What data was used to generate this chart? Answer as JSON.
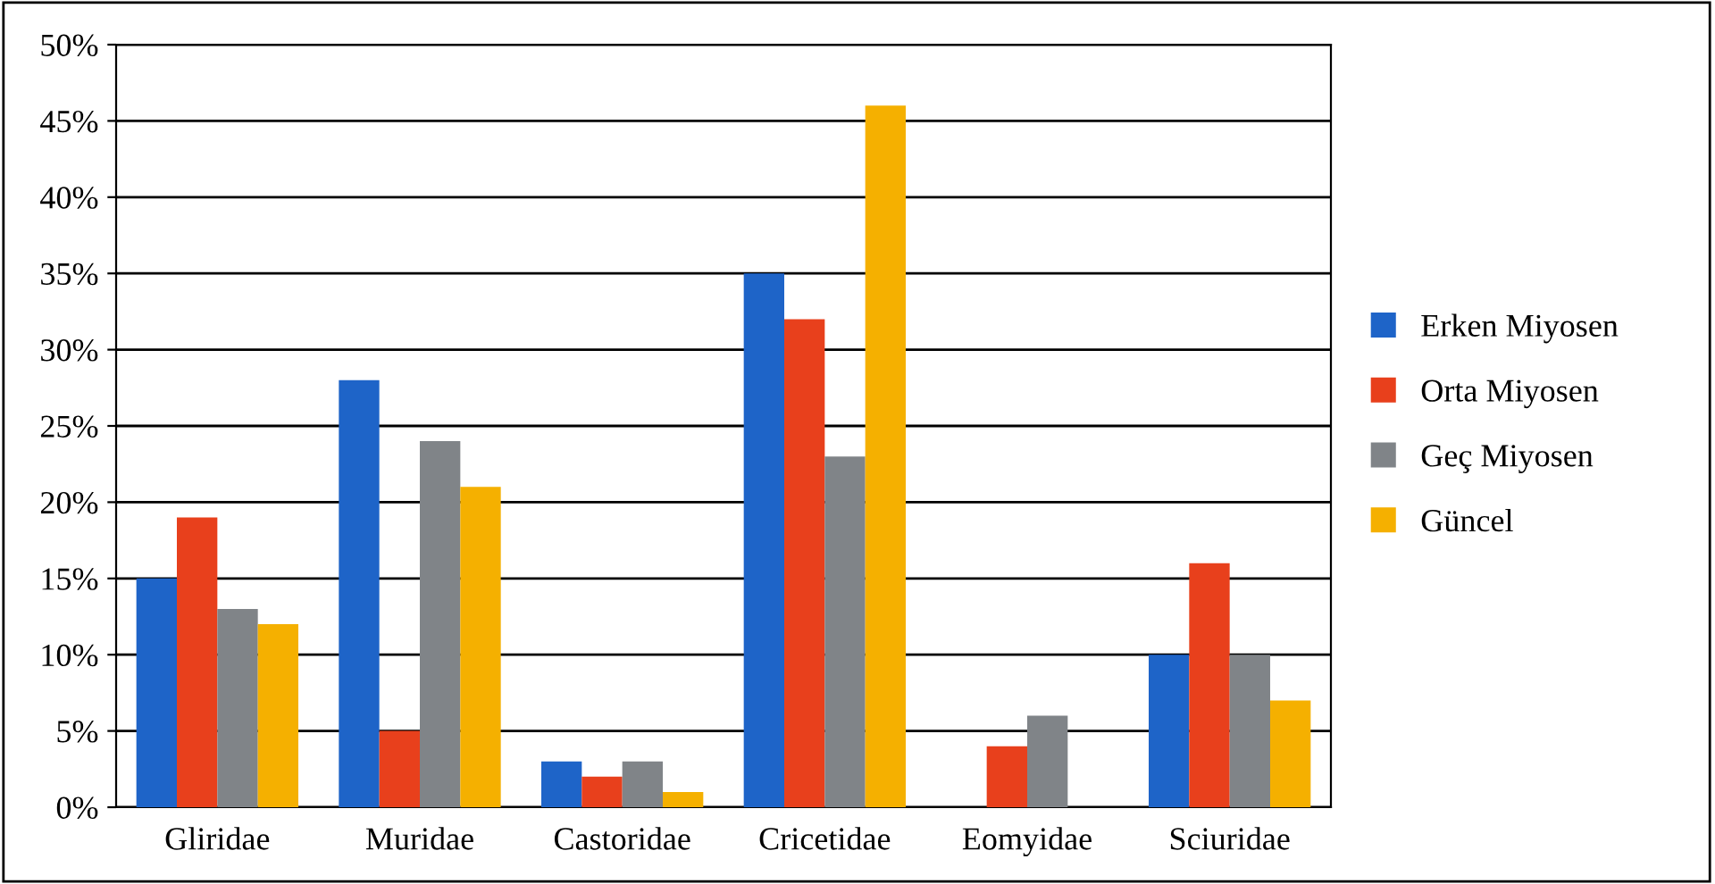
{
  "chart_data": {
    "type": "bar",
    "categories": [
      "Gliridae",
      "Muridae",
      "Castoridae",
      "Cricetidae",
      "Eomyidae",
      "Sciuridae"
    ],
    "series": [
      {
        "name": "Erken Miyosen",
        "color": "#1e64c8",
        "values": [
          15,
          28,
          3,
          35,
          0,
          10
        ]
      },
      {
        "name": "Orta Miyosen",
        "color": "#e8401c",
        "values": [
          19,
          5,
          2,
          32,
          4,
          16
        ]
      },
      {
        "name": "Geç Miyosen",
        "color": "#808488",
        "values": [
          13,
          24,
          3,
          23,
          6,
          10
        ]
      },
      {
        "name": "Güncel",
        "color": "#f5b000",
        "values": [
          12,
          21,
          1,
          46,
          0,
          7
        ]
      }
    ],
    "ylim": [
      0,
      50
    ],
    "yticks": [
      {
        "value": 0,
        "label": "0%"
      },
      {
        "value": 5,
        "label": "5%"
      },
      {
        "value": 10,
        "label": "10%"
      },
      {
        "value": 15,
        "label": "15%"
      },
      {
        "value": 20,
        "label": "20%"
      },
      {
        "value": 25,
        "label": "25%"
      },
      {
        "value": 30,
        "label": "30%"
      },
      {
        "value": 35,
        "label": "35%"
      },
      {
        "value": 40,
        "label": "40%"
      },
      {
        "value": 45,
        "label": "45%"
      },
      {
        "value": 50,
        "label": "50%"
      }
    ],
    "grid": "y",
    "legend": "right"
  }
}
